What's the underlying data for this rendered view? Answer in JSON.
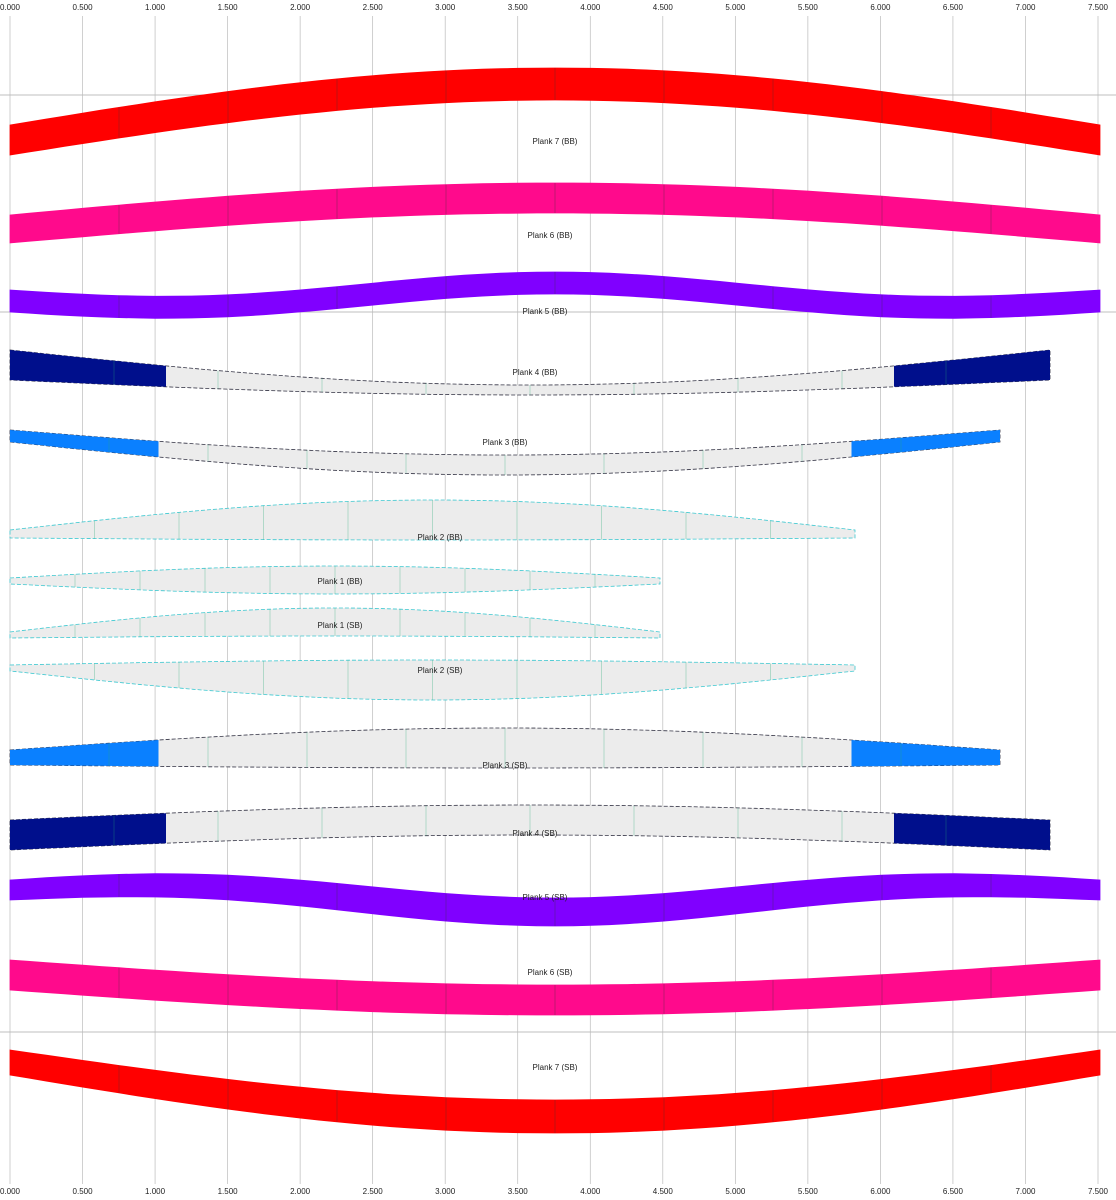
{
  "axis_top": [
    "0.000",
    "0.500",
    "1.000",
    "1.500",
    "2.000",
    "2.500",
    "3.000",
    "3.500",
    "4.000",
    "4.500",
    "5.000",
    "5.500",
    "6.000",
    "6.500",
    "7.000",
    "7.500"
  ],
  "axis_bottom": [
    "0.000",
    "0.500",
    "1.000",
    "1.500",
    "2.000",
    "2.500",
    "3.000",
    "3.500",
    "4.000",
    "4.500",
    "5.000",
    "5.500",
    "6.000",
    "6.500",
    "7.000",
    "7.500"
  ],
  "planks": [
    {
      "label": "Plank 7 (BB)",
      "color": "#ff0000"
    },
    {
      "label": "Plank 6 (BB)",
      "color": "#ff0a8c"
    },
    {
      "label": "Plank 5 (BB)",
      "color": "#8000ff"
    },
    {
      "label": "Plank 4 (BB)",
      "color": "#000f8c"
    },
    {
      "label": "Plank 3 (BB)",
      "color": "#0a80ff"
    },
    {
      "label": "Plank 2 (BB)",
      "color": "#3cc8d0"
    },
    {
      "label": "Plank 1 (BB)",
      "color": "#3cc8d0"
    },
    {
      "label": "Plank 1 (SB)",
      "color": "#3cc8d0"
    },
    {
      "label": "Plank 2 (SB)",
      "color": "#3cc8d0"
    },
    {
      "label": "Plank 3 (SB)",
      "color": "#0a80ff"
    },
    {
      "label": "Plank 4 (SB)",
      "color": "#000f8c"
    },
    {
      "label": "Plank 5 (SB)",
      "color": "#8000ff"
    },
    {
      "label": "Plank 6 (SB)",
      "color": "#ff0a8c"
    },
    {
      "label": "Plank 7 (SB)",
      "color": "#ff0000"
    }
  ]
}
